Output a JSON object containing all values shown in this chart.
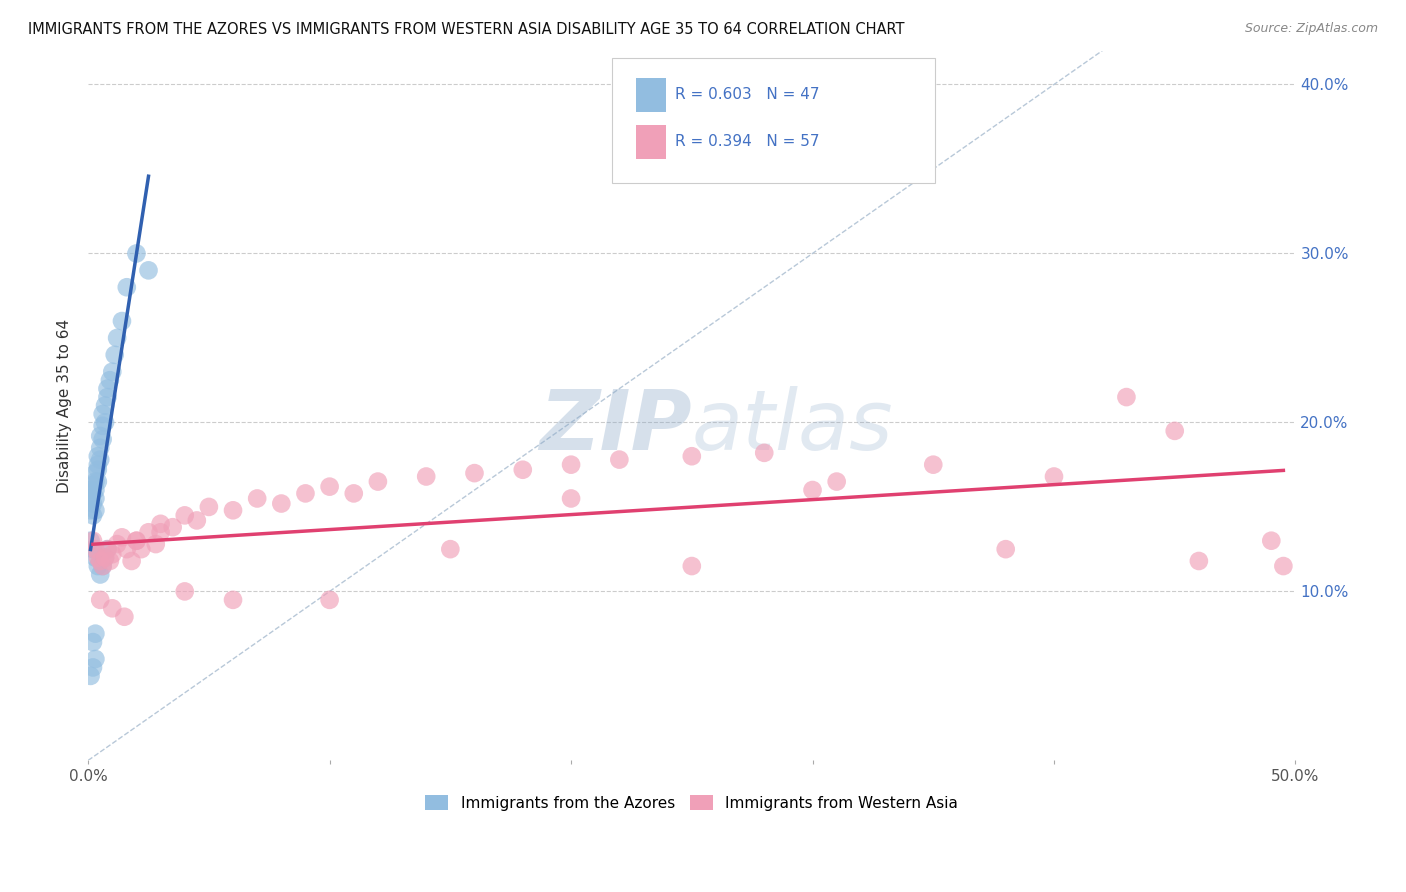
{
  "title": "IMMIGRANTS FROM THE AZORES VS IMMIGRANTS FROM WESTERN ASIA DISABILITY AGE 35 TO 64 CORRELATION CHART",
  "source": "Source: ZipAtlas.com",
  "ylabel": "Disability Age 35 to 64",
  "xlim": [
    0.0,
    0.5
  ],
  "ylim": [
    0.0,
    0.42
  ],
  "x_ticks": [
    0.0,
    0.1,
    0.2,
    0.3,
    0.4,
    0.5
  ],
  "x_tick_labels": [
    "0.0%",
    "",
    "",
    "",
    "",
    "50.0%"
  ],
  "y_ticks": [
    0.1,
    0.2,
    0.3,
    0.4
  ],
  "y_tick_labels_right": [
    "10.0%",
    "20.0%",
    "30.0%",
    "40.0%"
  ],
  "legend_azores_R": "0.603",
  "legend_azores_N": "47",
  "legend_western_asia_R": "0.394",
  "legend_western_asia_N": "57",
  "azores_color": "#92bde0",
  "western_asia_color": "#f0a0b8",
  "azores_line_color": "#3060b0",
  "western_asia_line_color": "#e04070",
  "diagonal_line_color": "#b8c8d8",
  "watermark_color": "#c8d8e8",
  "azores_scatter_x": [
    0.001,
    0.001,
    0.001,
    0.002,
    0.002,
    0.002,
    0.002,
    0.003,
    0.003,
    0.003,
    0.003,
    0.003,
    0.004,
    0.004,
    0.004,
    0.004,
    0.005,
    0.005,
    0.005,
    0.006,
    0.006,
    0.006,
    0.007,
    0.007,
    0.008,
    0.008,
    0.009,
    0.01,
    0.011,
    0.012,
    0.014,
    0.016,
    0.02,
    0.025,
    0.001,
    0.002,
    0.003,
    0.001,
    0.002,
    0.003,
    0.004,
    0.005,
    0.006,
    0.007,
    0.008,
    0.002,
    0.003
  ],
  "azores_scatter_y": [
    0.155,
    0.148,
    0.16,
    0.152,
    0.145,
    0.158,
    0.163,
    0.155,
    0.148,
    0.165,
    0.16,
    0.17,
    0.175,
    0.18,
    0.165,
    0.172,
    0.185,
    0.192,
    0.178,
    0.198,
    0.205,
    0.19,
    0.21,
    0.2,
    0.215,
    0.22,
    0.225,
    0.23,
    0.24,
    0.25,
    0.26,
    0.28,
    0.3,
    0.29,
    0.05,
    0.055,
    0.06,
    0.13,
    0.125,
    0.12,
    0.115,
    0.11,
    0.115,
    0.12,
    0.125,
    0.07,
    0.075
  ],
  "western_asia_scatter_x": [
    0.002,
    0.003,
    0.004,
    0.005,
    0.006,
    0.007,
    0.008,
    0.009,
    0.01,
    0.012,
    0.014,
    0.016,
    0.018,
    0.02,
    0.022,
    0.025,
    0.028,
    0.03,
    0.035,
    0.04,
    0.045,
    0.05,
    0.06,
    0.07,
    0.08,
    0.09,
    0.1,
    0.11,
    0.12,
    0.14,
    0.16,
    0.18,
    0.2,
    0.22,
    0.25,
    0.28,
    0.31,
    0.35,
    0.4,
    0.45,
    0.005,
    0.01,
    0.015,
    0.02,
    0.03,
    0.04,
    0.06,
    0.1,
    0.15,
    0.2,
    0.25,
    0.3,
    0.38,
    0.43,
    0.46,
    0.49,
    0.495
  ],
  "western_asia_scatter_y": [
    0.13,
    0.125,
    0.12,
    0.118,
    0.115,
    0.12,
    0.125,
    0.118,
    0.122,
    0.128,
    0.132,
    0.125,
    0.118,
    0.13,
    0.125,
    0.135,
    0.128,
    0.14,
    0.138,
    0.145,
    0.142,
    0.15,
    0.148,
    0.155,
    0.152,
    0.158,
    0.162,
    0.158,
    0.165,
    0.168,
    0.17,
    0.172,
    0.175,
    0.178,
    0.18,
    0.182,
    0.165,
    0.175,
    0.168,
    0.195,
    0.095,
    0.09,
    0.085,
    0.13,
    0.135,
    0.1,
    0.095,
    0.095,
    0.125,
    0.155,
    0.115,
    0.16,
    0.125,
    0.215,
    0.118,
    0.13,
    0.115
  ]
}
